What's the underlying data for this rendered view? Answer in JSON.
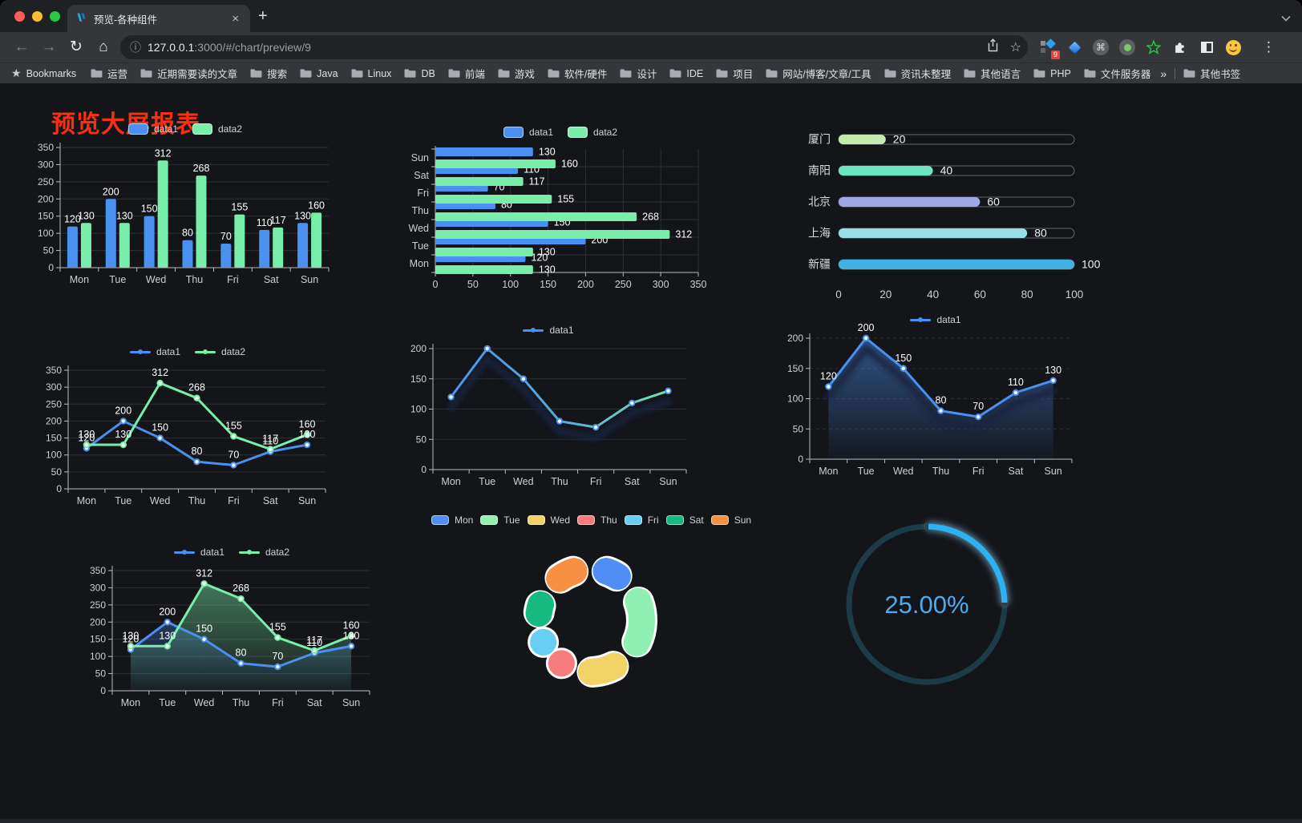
{
  "browser": {
    "traffic_lights": [
      "#ff5f57",
      "#febc2e",
      "#28c840"
    ],
    "tab_title": "预览-各种组件",
    "url_host": "127.0.0.1",
    "url_rest": ":3000/#/chart/preview/9",
    "bookmarks_root": "Bookmarks",
    "bookmark_items": [
      "运营",
      "近期需要读的文章",
      "搜索",
      "Java",
      "Linux",
      "DB",
      "前端",
      "游戏",
      "软件/硬件",
      "设计",
      "IDE",
      "项目",
      "网站/博客/文章/工具",
      "资讯未整理",
      "其他语言",
      "PHP",
      "文件服务器"
    ],
    "bookmarks_overflow": "»",
    "other_bookmarks": "其他书签",
    "extension_badge": "9"
  },
  "page": {
    "title": "预览大屏报表",
    "title_color": "#f53111"
  },
  "theme": {
    "axis": "#b9bcc3",
    "tick": "#ccced5",
    "grid": "#2d2f34",
    "value_label": "#ffffff"
  },
  "chart_data": [
    {
      "id": "bar-vertical",
      "type": "bar",
      "categories": [
        "Mon",
        "Tue",
        "Wed",
        "Thu",
        "Fri",
        "Sat",
        "Sun"
      ],
      "series": [
        {
          "name": "data1",
          "color": "#4a90f2",
          "values": [
            120,
            200,
            150,
            80,
            70,
            110,
            130
          ]
        },
        {
          "name": "data2",
          "color": "#79edaa",
          "values": [
            130,
            130,
            312,
            268,
            155,
            117,
            160
          ]
        }
      ],
      "ylim": [
        0,
        350
      ],
      "ytick": 50,
      "labels": true,
      "legend_position": "top"
    },
    {
      "id": "bar-horizontal",
      "type": "bar",
      "orientation": "horizontal",
      "categories": [
        "Mon",
        "Tue",
        "Wed",
        "Thu",
        "Fri",
        "Sat",
        "Sun"
      ],
      "series": [
        {
          "name": "data1",
          "color": "#4a90f2",
          "values": [
            120,
            200,
            150,
            80,
            70,
            110,
            130
          ]
        },
        {
          "name": "data2",
          "color": "#79edaa",
          "values": [
            130,
            130,
            312,
            268,
            155,
            117,
            160
          ]
        }
      ],
      "xlim": [
        0,
        350
      ],
      "xtick": 50,
      "labels": true,
      "legend_position": "top"
    },
    {
      "id": "city-progress",
      "type": "bar",
      "subtype": "progress-pills",
      "rows": [
        {
          "label": "厦门",
          "value": 20,
          "color": "#c4ebad"
        },
        {
          "label": "南阳",
          "value": 40,
          "color": "#6be6c1"
        },
        {
          "label": "北京",
          "value": 60,
          "color": "#a0a7e6"
        },
        {
          "label": "上海",
          "value": 80,
          "color": "#96dee8"
        },
        {
          "label": "新疆",
          "value": 100,
          "color": "#3fb1e3"
        }
      ],
      "xlim": [
        0,
        100
      ],
      "xtick": 20
    },
    {
      "id": "line-dual",
      "type": "line",
      "categories": [
        "Mon",
        "Tue",
        "Wed",
        "Thu",
        "Fri",
        "Sat",
        "Sun"
      ],
      "series": [
        {
          "name": "data1",
          "color": "#4a90f2",
          "values": [
            120,
            200,
            150,
            80,
            70,
            110,
            130
          ]
        },
        {
          "name": "data2",
          "color": "#79edaa",
          "values": [
            130,
            130,
            312,
            268,
            155,
            117,
            160
          ]
        }
      ],
      "ylim": [
        0,
        350
      ],
      "ytick": 50,
      "labels": true,
      "legend_position": "top"
    },
    {
      "id": "line-gradient",
      "type": "line",
      "categories": [
        "Mon",
        "Tue",
        "Wed",
        "Thu",
        "Fri",
        "Sat",
        "Sun"
      ],
      "series": [
        {
          "name": "data1",
          "color": "#4a90f2",
          "gradient_to": "#74ecaa",
          "values": [
            120,
            200,
            150,
            80,
            70,
            110,
            130
          ]
        }
      ],
      "ylim": [
        0,
        200
      ],
      "ytick": 50,
      "labels": false,
      "gradient_line": true,
      "shadow": true,
      "legend_position": "top"
    },
    {
      "id": "area-single",
      "type": "area",
      "categories": [
        "Mon",
        "Tue",
        "Wed",
        "Thu",
        "Fri",
        "Sat",
        "Sun"
      ],
      "series": [
        {
          "name": "data1",
          "color": "#4a90f2",
          "area": true,
          "values": [
            120,
            200,
            150,
            80,
            70,
            110,
            130
          ]
        }
      ],
      "ylim": [
        0,
        200
      ],
      "ytick": 50,
      "labels": true,
      "dashed_grid": true,
      "shadow": true,
      "legend_position": "top"
    },
    {
      "id": "area-dual",
      "type": "area",
      "categories": [
        "Mon",
        "Tue",
        "Wed",
        "Thu",
        "Fri",
        "Sat",
        "Sun"
      ],
      "series": [
        {
          "name": "data1",
          "color": "#4a90f2",
          "area": true,
          "values": [
            120,
            200,
            150,
            80,
            70,
            110,
            130
          ]
        },
        {
          "name": "data2",
          "color": "#79edaa",
          "area": true,
          "values": [
            130,
            130,
            312,
            268,
            155,
            117,
            160
          ]
        }
      ],
      "ylim": [
        0,
        350
      ],
      "ytick": 50,
      "labels": true,
      "legend_position": "top"
    },
    {
      "id": "weekday-donut",
      "type": "pie",
      "categories": [
        "Mon",
        "Tue",
        "Wed",
        "Thu",
        "Fri",
        "Sat",
        "Sun"
      ],
      "values": [
        120,
        200,
        150,
        80,
        70,
        110,
        130
      ],
      "colors": [
        "#4e8ef5",
        "#90f0b2",
        "#f0d266",
        "#f87c7d",
        "#66cff2",
        "#16b97f",
        "#f79043"
      ],
      "inner_radius_ratio": 0.58,
      "border_color": "#ffffff",
      "legend_position": "top"
    },
    {
      "id": "percent-gauge",
      "type": "gauge",
      "value": 25,
      "display": "25.00%",
      "color": "#2ab2f2",
      "track_color": "#1d3a47",
      "text_color": "#4cacf0"
    }
  ]
}
